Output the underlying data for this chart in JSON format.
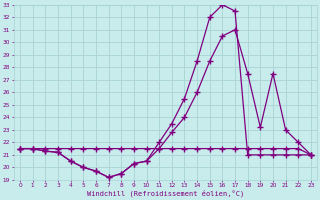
{
  "xlabel": "Windchill (Refroidissement éolien,°C)",
  "bg_color": "#c8ecec",
  "line_color": "#800080",
  "grid_color": "#a8d4d4",
  "xlim": [
    -0.5,
    23.5
  ],
  "ylim": [
    19,
    33
  ],
  "yticks": [
    19,
    20,
    21,
    22,
    23,
    24,
    25,
    26,
    27,
    28,
    29,
    30,
    31,
    32,
    33
  ],
  "xticks": [
    0,
    1,
    2,
    3,
    4,
    5,
    6,
    7,
    8,
    9,
    10,
    11,
    12,
    13,
    14,
    15,
    16,
    17,
    18,
    19,
    20,
    21,
    22,
    23
  ],
  "line1_x": [
    0,
    1,
    2,
    3,
    4,
    5,
    6,
    7,
    8,
    9,
    10,
    11,
    12,
    13,
    14,
    15,
    16,
    17,
    18,
    19,
    20,
    21,
    22,
    23
  ],
  "line1_y": [
    21.5,
    21.5,
    21.5,
    21.5,
    21.5,
    21.5,
    21.5,
    21.5,
    21.5,
    21.5,
    21.5,
    21.5,
    21.5,
    21.5,
    21.5,
    21.5,
    21.5,
    21.5,
    21.5,
    21.5,
    21.5,
    21.5,
    21.5,
    21.0
  ],
  "line2_x": [
    0,
    1,
    2,
    3,
    4,
    5,
    6,
    7,
    8,
    9,
    10,
    11,
    12,
    13,
    14,
    15,
    16,
    17,
    18,
    19,
    20,
    21,
    22,
    23
  ],
  "line2_y": [
    21.5,
    21.5,
    21.3,
    21.2,
    20.5,
    20.0,
    19.7,
    19.2,
    19.5,
    20.3,
    20.5,
    21.5,
    22.8,
    24.0,
    26.0,
    28.5,
    30.5,
    31.0,
    27.5,
    23.2,
    27.5,
    23.0,
    22.0,
    21.0
  ],
  "line3_x": [
    0,
    1,
    2,
    3,
    4,
    5,
    6,
    7,
    8,
    9,
    10,
    11,
    12,
    13,
    14,
    15,
    16,
    17,
    18,
    19,
    20,
    21,
    22,
    23
  ],
  "line3_y": [
    21.5,
    21.5,
    21.3,
    21.2,
    20.5,
    20.0,
    19.7,
    19.2,
    19.5,
    20.3,
    20.5,
    22.0,
    23.5,
    25.5,
    28.5,
    32.0,
    33.0,
    32.5,
    21.0,
    21.0,
    21.0,
    21.0,
    21.0,
    21.0
  ],
  "marker": "+",
  "markersize": 4.0,
  "linewidth": 0.9
}
